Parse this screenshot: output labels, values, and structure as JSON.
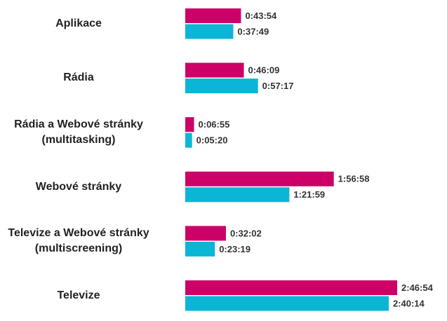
{
  "chart_data": {
    "type": "bar",
    "orientation": "horizontal",
    "categories": [
      "Aplikace",
      "Rádia",
      "Rádia a Webové stránky\n(multitasking)",
      "Webové stránky",
      "Televize a Webové stránky\n(multiscreening)",
      "Televize"
    ],
    "series": [
      {
        "color": "#cc0066",
        "values": [
          2634,
          2769,
          415,
          7018,
          1922,
          10014
        ],
        "value_labels": [
          "0:43:54",
          "0:46:09",
          "0:06:55",
          "1:56:58",
          "0:32:02",
          "2:46:54"
        ]
      },
      {
        "color": "#0bb5d6",
        "values": [
          2269,
          3437,
          320,
          4919,
          1399,
          9614
        ],
        "value_labels": [
          "0:37:49",
          "0:57:17",
          "0:05:20",
          "1:21:59",
          "0:23:19",
          "2:40:14"
        ]
      }
    ]
  }
}
